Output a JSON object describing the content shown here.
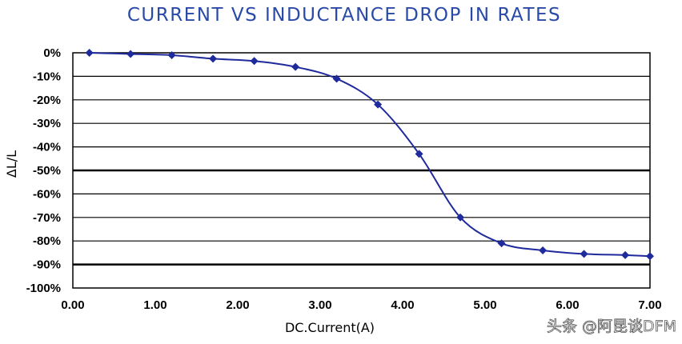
{
  "chart_data": {
    "type": "line",
    "title": "CURRENT VS INDUCTANCE DROP IN RATES",
    "xlabel": "DC.Current(A)",
    "ylabel": "ΔL/L",
    "xlim": [
      0,
      7
    ],
    "ylim": [
      -100,
      0
    ],
    "x_ticks": [
      "0.00",
      "1.00",
      "2.00",
      "3.00",
      "4.00",
      "5.00",
      "6.00",
      "7.00"
    ],
    "y_ticks": [
      "0%",
      "-10%",
      "-20%",
      "-30%",
      "-40%",
      "-50%",
      "-60%",
      "-70%",
      "-80%",
      "-90%",
      "-100%"
    ],
    "grid": true,
    "series": [
      {
        "name": "ΔL/L",
        "color": "#1f2a9c",
        "x": [
          0.2,
          0.7,
          1.2,
          1.7,
          2.2,
          2.7,
          3.2,
          3.7,
          4.2,
          4.7,
          5.2,
          5.7,
          6.2,
          6.7,
          7.0
        ],
        "y": [
          0,
          -0.5,
          -1,
          -2.5,
          -3.5,
          -6,
          -11,
          -22,
          -43,
          -70,
          -81,
          -84,
          -85.5,
          -86,
          -86.5
        ]
      }
    ]
  },
  "watermark": "头条 @阿昆谈DFM"
}
